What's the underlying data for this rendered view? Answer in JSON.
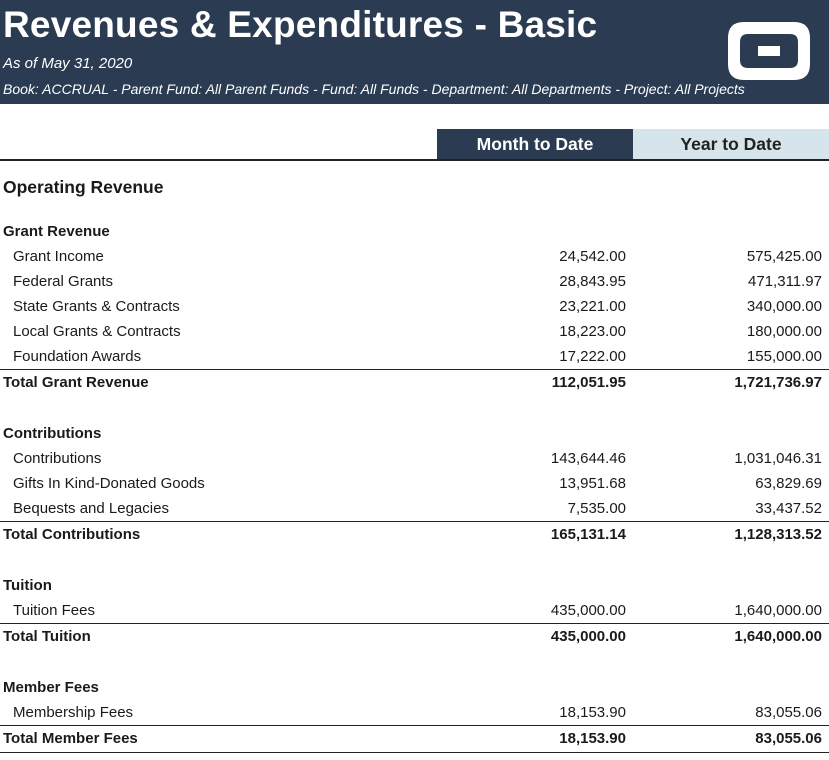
{
  "header": {
    "title": "Revenues & Expenditures - Basic",
    "as_of": "As of May 31, 2020",
    "filters": "Book: ACCRUAL - Parent Fund: All Parent Funds - Fund: All Funds - Department: All Departments - Project: All Projects",
    "logo_icon": "company-logo-icon"
  },
  "columns": {
    "mtd": "Month to Date",
    "ytd": "Year to Date"
  },
  "section_title": "Operating Revenue",
  "categories": [
    {
      "name": "Grant Revenue",
      "items": [
        {
          "label": "Grant Income",
          "mtd": "24,542.00",
          "ytd": "575,425.00"
        },
        {
          "label": "Federal Grants",
          "mtd": "28,843.95",
          "ytd": "471,311.97"
        },
        {
          "label": "State Grants & Contracts",
          "mtd": "23,221.00",
          "ytd": "340,000.00"
        },
        {
          "label": "Local Grants & Contracts",
          "mtd": "18,223.00",
          "ytd": "180,000.00"
        },
        {
          "label": "Foundation Awards",
          "mtd": "17,222.00",
          "ytd": "155,000.00"
        }
      ],
      "total": {
        "label": "Total Grant Revenue",
        "mtd": "112,051.95",
        "ytd": "1,721,736.97"
      }
    },
    {
      "name": "Contributions",
      "items": [
        {
          "label": "Contributions",
          "mtd": "143,644.46",
          "ytd": "1,031,046.31"
        },
        {
          "label": "Gifts In Kind-Donated Goods",
          "mtd": "13,951.68",
          "ytd": "63,829.69"
        },
        {
          "label": "Bequests and Legacies",
          "mtd": "7,535.00",
          "ytd": "33,437.52"
        }
      ],
      "total": {
        "label": "Total Contributions",
        "mtd": "165,131.14",
        "ytd": "1,128,313.52"
      }
    },
    {
      "name": "Tuition",
      "items": [
        {
          "label": "Tuition Fees",
          "mtd": "435,000.00",
          "ytd": "1,640,000.00"
        }
      ],
      "total": {
        "label": "Total Tuition",
        "mtd": "435,000.00",
        "ytd": "1,640,000.00"
      }
    },
    {
      "name": "Member Fees",
      "items": [
        {
          "label": "Membership Fees",
          "mtd": "18,153.90",
          "ytd": "83,055.06"
        }
      ],
      "total": {
        "label": "Total Member Fees",
        "mtd": "18,153.90",
        "ytd": "83,055.06"
      }
    }
  ]
}
